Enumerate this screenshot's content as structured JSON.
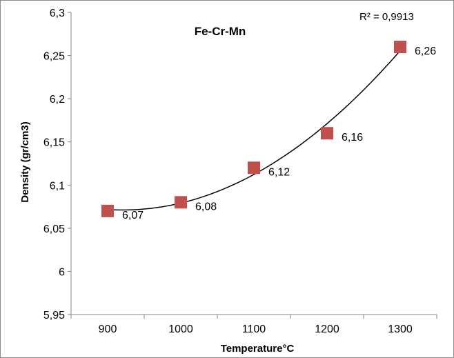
{
  "chart_data": {
    "type": "scatter",
    "title": "Fe-Cr-Mn",
    "xlabel": "Temperature°C",
    "ylabel": "Density (gr/cm3)",
    "xlim": [
      850,
      1350
    ],
    "ylim": [
      5.95,
      6.3
    ],
    "x_ticks": [
      900,
      1000,
      1100,
      1200,
      1300
    ],
    "y_ticks": [
      5.95,
      6,
      6.05,
      6.1,
      6.15,
      6.2,
      6.25,
      6.3
    ],
    "x_tick_labels": [
      "900",
      "1000",
      "1100",
      "1200",
      "1300"
    ],
    "y_tick_labels": [
      "5,95",
      "6",
      "6,05",
      "6,1",
      "6,15",
      "6,2",
      "6,25",
      "6,3"
    ],
    "series": [
      {
        "x": [
          900,
          1000,
          1100,
          1200,
          1300
        ],
        "values": [
          6.07,
          6.08,
          6.12,
          6.16,
          6.26
        ],
        "data_labels": [
          "6,07",
          "6,08",
          "6,12",
          "6,16",
          "6,26"
        ],
        "color": "#c0504d",
        "marker": "square"
      }
    ],
    "trendline": {
      "type": "polynomial",
      "color": "#000000",
      "r_squared_label": "R² = 0,9913"
    },
    "grid": false,
    "legend": "none"
  }
}
